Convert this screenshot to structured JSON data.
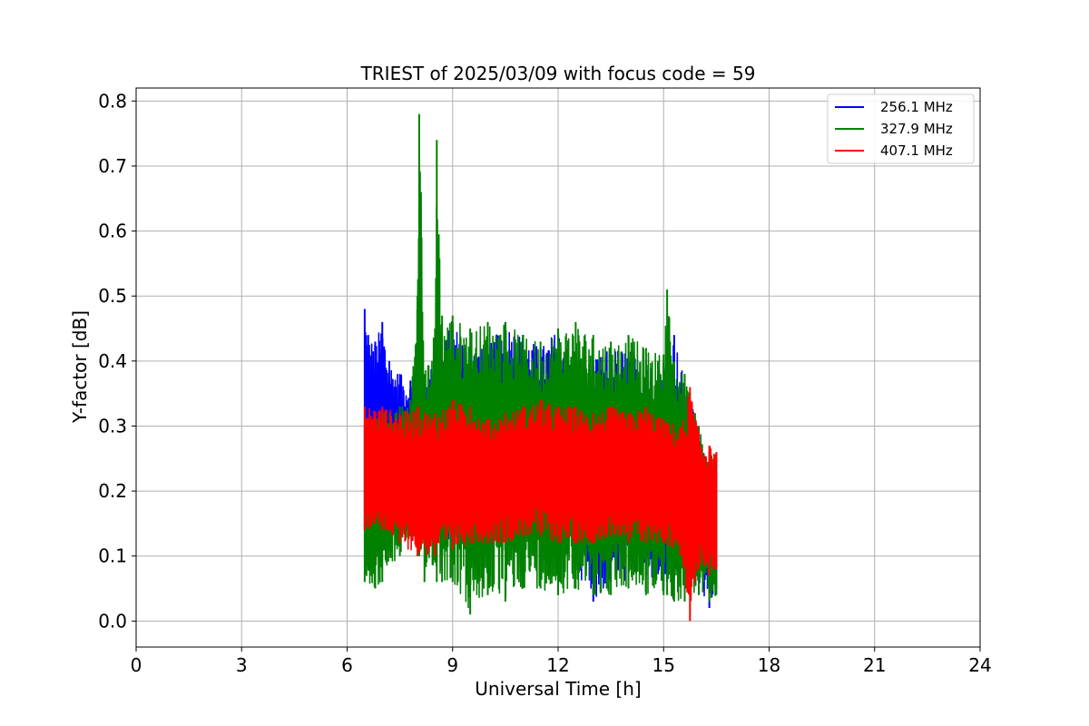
{
  "chart_data": {
    "type": "line",
    "title": "TRIEST of 2025/03/09 with focus code = 59",
    "xlabel": "Universal Time [h]",
    "ylabel": "Y-factor [dB]",
    "xlim": [
      0,
      24
    ],
    "ylim": [
      -0.04,
      0.82
    ],
    "xticks": [
      0,
      3,
      6,
      9,
      12,
      15,
      18,
      21,
      24
    ],
    "yticks": [
      0.0,
      0.1,
      0.2,
      0.3,
      0.4,
      0.5,
      0.6,
      0.7,
      0.8
    ],
    "ytick_labels": [
      "0.0",
      "0.1",
      "0.2",
      "0.3",
      "0.4",
      "0.5",
      "0.6",
      "0.7",
      "0.8"
    ],
    "grid": true,
    "legend_position": "top-right",
    "series": [
      {
        "name": "256.1 MHz",
        "color": "#0000ff",
        "x": [
          6.5,
          6.6,
          6.8,
          7.0,
          7.2,
          7.5,
          7.8,
          8.0,
          8.5,
          9.0,
          9.5,
          10.0,
          10.5,
          11.0,
          11.5,
          12.0,
          12.5,
          13.0,
          13.5,
          14.0,
          14.5,
          15.0,
          15.3,
          15.6,
          16.0,
          16.3,
          16.5
        ],
        "upper": [
          0.48,
          0.44,
          0.43,
          0.46,
          0.4,
          0.38,
          0.37,
          0.36,
          0.4,
          0.46,
          0.42,
          0.42,
          0.46,
          0.44,
          0.42,
          0.45,
          0.4,
          0.4,
          0.42,
          0.42,
          0.4,
          0.39,
          0.44,
          0.37,
          0.3,
          0.25,
          0.24
        ],
        "lower": [
          0.14,
          0.13,
          0.12,
          0.13,
          0.14,
          0.15,
          0.15,
          0.15,
          0.13,
          0.12,
          0.12,
          0.12,
          0.12,
          0.11,
          0.11,
          0.1,
          0.08,
          0.03,
          0.06,
          0.06,
          0.07,
          0.05,
          0.06,
          0.07,
          0.05,
          0.02,
          0.05
        ]
      },
      {
        "name": "327.9 MHz",
        "color": "#008000",
        "x": [
          6.5,
          6.8,
          7.0,
          7.5,
          7.8,
          8.0,
          8.05,
          8.1,
          8.2,
          8.5,
          8.55,
          8.7,
          9.0,
          9.5,
          10.0,
          10.5,
          11.0,
          11.5,
          12.0,
          12.5,
          13.0,
          13.5,
          14.0,
          14.5,
          15.0,
          15.1,
          15.3,
          15.6,
          16.0,
          16.3,
          16.5
        ],
        "upper": [
          0.3,
          0.31,
          0.32,
          0.33,
          0.34,
          0.5,
          0.78,
          0.66,
          0.38,
          0.45,
          0.74,
          0.47,
          0.47,
          0.45,
          0.46,
          0.46,
          0.44,
          0.43,
          0.45,
          0.46,
          0.44,
          0.43,
          0.44,
          0.42,
          0.41,
          0.51,
          0.4,
          0.38,
          0.3,
          0.26,
          0.25
        ],
        "lower": [
          0.06,
          0.05,
          0.06,
          0.1,
          0.13,
          0.12,
          0.1,
          0.11,
          0.06,
          0.09,
          0.06,
          0.06,
          0.06,
          0.01,
          0.04,
          0.03,
          0.05,
          0.05,
          0.04,
          0.05,
          0.04,
          0.04,
          0.05,
          0.04,
          0.04,
          0.04,
          0.03,
          0.03,
          0.04,
          0.03,
          0.04
        ]
      },
      {
        "name": "407.1 MHz",
        "color": "#ff0000",
        "x": [
          6.5,
          7.0,
          7.5,
          8.0,
          8.5,
          9.0,
          9.5,
          10.0,
          10.5,
          11.0,
          11.5,
          12.0,
          12.5,
          13.0,
          13.5,
          14.0,
          14.5,
          15.0,
          15.5,
          15.75,
          16.0,
          16.3,
          16.5
        ],
        "upper": [
          0.33,
          0.33,
          0.32,
          0.33,
          0.32,
          0.34,
          0.33,
          0.31,
          0.32,
          0.33,
          0.34,
          0.33,
          0.33,
          0.32,
          0.33,
          0.32,
          0.33,
          0.31,
          0.3,
          0.36,
          0.29,
          0.27,
          0.26
        ],
        "lower": [
          0.14,
          0.14,
          0.12,
          0.1,
          0.1,
          0.11,
          0.12,
          0.12,
          0.12,
          0.13,
          0.13,
          0.12,
          0.12,
          0.12,
          0.13,
          0.12,
          0.12,
          0.12,
          0.1,
          0.0,
          0.08,
          0.07,
          0.08
        ]
      }
    ]
  }
}
